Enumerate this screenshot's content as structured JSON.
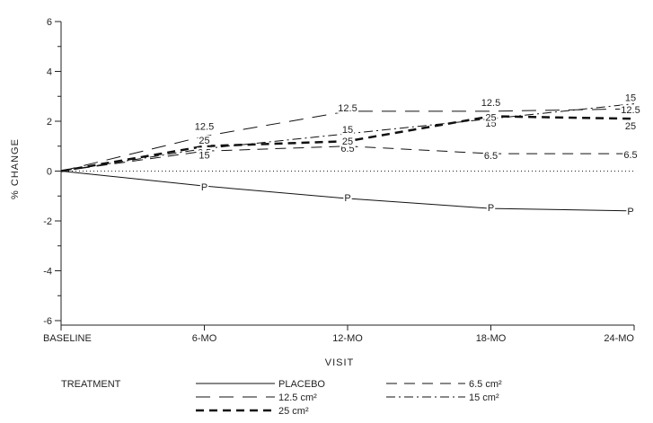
{
  "chart_data": {
    "type": "line",
    "title": "",
    "xlabel": "VISIT",
    "ylabel": "% CHANGE",
    "categories": [
      "BASELINE",
      "6-MO",
      "12-MO",
      "18-MO",
      "24-MO"
    ],
    "ylim": [
      -6,
      6
    ],
    "yticks": [
      -6,
      -4,
      -2,
      0,
      2,
      4,
      6
    ],
    "grid": false,
    "reference_line_y": 0,
    "legend_title": "TREATMENT",
    "legend_position": "bottom",
    "series": [
      {
        "name": "PLACEBO",
        "marker": "P",
        "values": [
          0,
          -0.6,
          -1.1,
          -1.5,
          -1.6
        ],
        "dash": "solid",
        "width": 1
      },
      {
        "name": "6.5 cm²",
        "marker": "6.5",
        "values": [
          0,
          0.8,
          1.0,
          0.7,
          0.7
        ],
        "dash": "long",
        "width": 1
      },
      {
        "name": "12.5 cm²",
        "marker": "12.5",
        "values": [
          0,
          1.4,
          2.4,
          2.4,
          2.5
        ],
        "dash": "longspace",
        "width": 1
      },
      {
        "name": "15 cm²",
        "marker": "15",
        "values": [
          0,
          0.9,
          1.5,
          2.1,
          2.7
        ],
        "dash": "dashdot",
        "width": 1
      },
      {
        "name": "25 cm²",
        "marker": "25",
        "values": [
          0,
          1.0,
          1.2,
          2.2,
          2.1
        ],
        "dash": "bold",
        "width": 2.5
      }
    ]
  }
}
